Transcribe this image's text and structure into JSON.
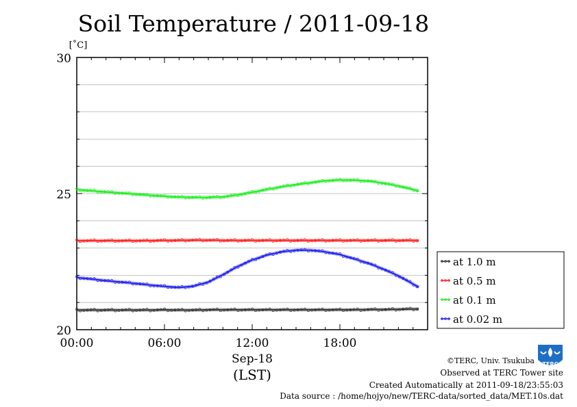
{
  "chart_data": {
    "type": "line",
    "title": "Soil Temperature / 2011-09-18",
    "yunit": "[˚C]",
    "ylim": [
      20,
      30
    ],
    "yticks": [
      "30",
      "25",
      "20"
    ],
    "xlim": [
      "00:00",
      "24:00"
    ],
    "xticks": [
      "00:00",
      "06:00",
      "12:00",
      "18:00"
    ],
    "date_label": "Sep-18",
    "xlabel": "(LST)",
    "grid": true,
    "legend_position": "right",
    "x": [
      0,
      1,
      2,
      3,
      4,
      5,
      6,
      7,
      8,
      9,
      10,
      11,
      12,
      13,
      14,
      15,
      16,
      17,
      18,
      19,
      20,
      21,
      22,
      23
    ],
    "series": [
      {
        "name": "at 1.0 m",
        "color": "#333333",
        "values": [
          20.72,
          20.72,
          20.72,
          20.72,
          20.72,
          20.72,
          20.73,
          20.72,
          20.72,
          20.73,
          20.73,
          20.73,
          20.73,
          20.73,
          20.73,
          20.73,
          20.73,
          20.73,
          20.73,
          20.73,
          20.74,
          20.74,
          20.75,
          20.76
        ]
      },
      {
        "name": "at 0.5 m",
        "color": "#ff2020",
        "values": [
          23.27,
          23.27,
          23.27,
          23.27,
          23.27,
          23.27,
          23.28,
          23.28,
          23.29,
          23.29,
          23.28,
          23.28,
          23.28,
          23.28,
          23.28,
          23.28,
          23.28,
          23.28,
          23.28,
          23.28,
          23.28,
          23.28,
          23.28,
          23.28
        ]
      },
      {
        "name": "at 0.1 m",
        "color": "#22ee22",
        "values": [
          25.15,
          25.1,
          25.06,
          25.02,
          24.98,
          24.94,
          24.9,
          24.87,
          24.86,
          24.86,
          24.88,
          24.95,
          25.05,
          25.15,
          25.25,
          25.33,
          25.4,
          25.47,
          25.5,
          25.49,
          25.46,
          25.38,
          25.28,
          25.15
        ]
      },
      {
        "name": "at 0.02 m",
        "color": "#2222ee",
        "values": [
          21.92,
          21.86,
          21.8,
          21.75,
          21.7,
          21.64,
          21.59,
          21.55,
          21.6,
          21.75,
          22.02,
          22.32,
          22.56,
          22.74,
          22.86,
          22.92,
          22.92,
          22.86,
          22.76,
          22.6,
          22.43,
          22.22,
          21.98,
          21.68
        ]
      }
    ]
  },
  "footer": {
    "copyright": "©TERC, Univ. Tsukuba",
    "site": "Observed at TERC Tower site",
    "created": "Created Automatically at 2011-09-18/23:55:03",
    "source": "Data source : /home/hojyo/new/TERC-data/sorted_data/MET.10s.dat"
  },
  "logo_text": "TERC"
}
